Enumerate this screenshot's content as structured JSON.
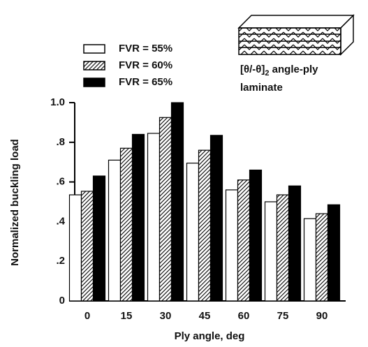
{
  "chart_data": {
    "type": "bar",
    "x_label": "Ply angle, deg",
    "y_label": "Normalized buckling load",
    "annotation": {
      "prefix": "[θ/-θ]",
      "subscript": "2",
      "suffix": " angle-ply",
      "line2": "laminate"
    },
    "categories": [
      "0",
      "15",
      "30",
      "45",
      "60",
      "75",
      "90"
    ],
    "series": [
      {
        "name": "FVR = 55%",
        "color": "#ffffff",
        "hatch": false,
        "values": [
          0.535,
          0.71,
          0.845,
          0.695,
          0.56,
          0.5,
          0.415
        ]
      },
      {
        "name": "FVR = 60%",
        "color": "#ffffff",
        "hatch": true,
        "values": [
          0.553,
          0.77,
          0.925,
          0.76,
          0.61,
          0.535,
          0.44
        ]
      },
      {
        "name": "FVR = 65%",
        "color": "#000000",
        "hatch": false,
        "values": [
          0.63,
          0.84,
          1.0,
          0.835,
          0.66,
          0.58,
          0.485
        ]
      }
    ],
    "ylim": [
      0,
      1.0
    ],
    "yticks": [
      0,
      {
        "value": 0.2,
        "label": ".2"
      },
      {
        "value": 0.4,
        "label": ".4"
      },
      {
        "value": 0.6,
        "label": ".6"
      },
      {
        "value": 0.8,
        "label": ".8"
      },
      {
        "value": 1.0,
        "label": "1.0"
      }
    ],
    "grid": false
  }
}
